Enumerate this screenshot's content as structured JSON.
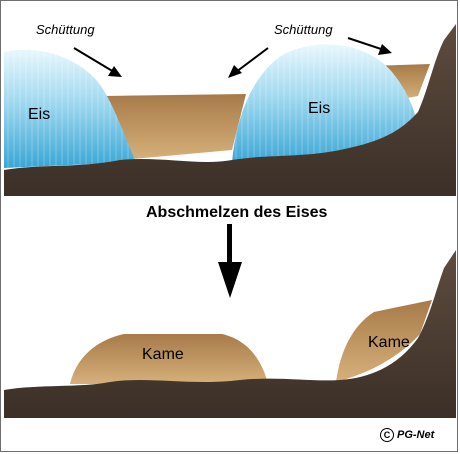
{
  "top_panel": {
    "label_left_fill": "Schüttung",
    "label_right_fill": "Schüttung",
    "label_ice_left": "Eis",
    "label_ice_right": "Eis"
  },
  "middle": {
    "title": "Abschmelzen des Eises"
  },
  "bottom_panel": {
    "label_kame_left": "Kame",
    "label_kame_right": "Kame"
  },
  "copyright": {
    "symbol": "C",
    "text": "PG-Net"
  },
  "colors": {
    "rock": "#4e3f34",
    "sediment": "#b08a5a",
    "ice": "#7cc8e4",
    "ice_light": "#dff3fb"
  }
}
